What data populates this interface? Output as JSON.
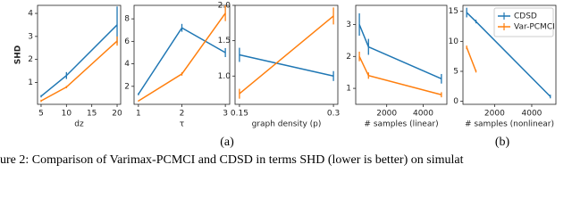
{
  "chart_data": [
    {
      "type": "line",
      "ylabel": "SHD",
      "xlabel": "dz",
      "x": [
        5,
        10,
        20
      ],
      "xlim": [
        4.3,
        20.7
      ],
      "ylim": [
        0.05,
        4.35
      ],
      "xticks": [
        5,
        10,
        15,
        20
      ],
      "yticks": [
        1,
        2,
        3,
        4
      ],
      "series": [
        {
          "name": "CDSD",
          "color": "#1f77b4",
          "values": [
            0.4,
            1.3,
            3.5
          ],
          "errors": [
            0.05,
            0.15,
            0.8
          ]
        },
        {
          "name": "Var-PCMCI",
          "color": "#ff7f0e",
          "values": [
            0.2,
            0.8,
            2.8
          ],
          "errors": [
            0.05,
            0.05,
            0.2
          ]
        }
      ]
    },
    {
      "type": "line",
      "xlabel": "τ",
      "x": [
        1,
        2,
        3
      ],
      "xlim": [
        0.9,
        3.1
      ],
      "ylim": [
        0.4,
        9.2
      ],
      "xticks": [
        1,
        2,
        3
      ],
      "yticks": [
        2,
        4,
        6,
        8
      ],
      "series": [
        {
          "name": "CDSD",
          "color": "#1f77b4",
          "values": [
            1.3,
            7.2,
            5.0
          ],
          "errors": [
            0.1,
            0.35,
            0.4
          ]
        },
        {
          "name": "Var-PCMCI",
          "color": "#ff7f0e",
          "values": [
            0.7,
            3.1,
            8.5
          ],
          "errors": [
            0.05,
            0.15,
            0.7
          ]
        }
      ]
    },
    {
      "type": "line",
      "xlabel": "graph density (p)",
      "x": [
        0.15,
        0.3
      ],
      "xlim": [
        0.143,
        0.307
      ],
      "ylim": [
        0.6,
        2.0
      ],
      "xticks": [
        0.15,
        0.3
      ],
      "yticks": [
        {
          "value": 1,
          "label": "1.0"
        },
        {
          "value": 1.5,
          "label": "1.5"
        },
        {
          "value": 2,
          "label": "2.0"
        }
      ],
      "series": [
        {
          "name": "CDSD",
          "color": "#1f77b4",
          "values": [
            1.3,
            1.0
          ],
          "errors": [
            0.1,
            0.07
          ]
        },
        {
          "name": "Var-PCMCI",
          "color": "#ff7f0e",
          "values": [
            0.75,
            1.85
          ],
          "errors": [
            0.07,
            0.12
          ]
        }
      ]
    },
    {
      "type": "line",
      "xlabel": "# samples (linear)",
      "x": [
        500,
        1000,
        5000
      ],
      "xlim": [
        300,
        5300
      ],
      "ylim": [
        0.5,
        3.6
      ],
      "xticks": [
        2000,
        4000
      ],
      "yticks": [
        1,
        2,
        3
      ],
      "series": [
        {
          "name": "CDSD",
          "color": "#1f77b4",
          "values": [
            3.0,
            2.3,
            1.3
          ],
          "errors": [
            0.35,
            0.25,
            0.15
          ]
        },
        {
          "name": "Var-PCMCI",
          "color": "#ff7f0e",
          "values": [
            2.0,
            1.4,
            0.8
          ],
          "errors": [
            0.15,
            0.1,
            0.08
          ]
        }
      ]
    },
    {
      "type": "line",
      "xlabel": "# samples (nonlinear)",
      "x": [
        500,
        1000,
        5000
      ],
      "xlim": [
        300,
        5300
      ],
      "ylim": [
        -0.5,
        16
      ],
      "xticks": [
        2000,
        4000
      ],
      "yticks": [
        0,
        5,
        10,
        15
      ],
      "legend": "upper right",
      "series": [
        {
          "name": "CDSD",
          "color": "#1f77b4",
          "values": [
            14.8,
            13.3,
            0.8
          ],
          "errors": [
            0.8,
            0.3,
            0.3
          ]
        },
        {
          "name": "Var-PCMCI",
          "color": "#ff7f0e",
          "values": [
            9,
            5,
            null
          ],
          "errors": [
            0.3,
            0.2,
            null
          ]
        }
      ]
    }
  ],
  "caption": {
    "panel_a": "(a)",
    "panel_b": "(b)",
    "text": "ure 2: Comparison of Varimax-PCMCI and CDSD in terms SHD (lower is better) on simulat"
  }
}
